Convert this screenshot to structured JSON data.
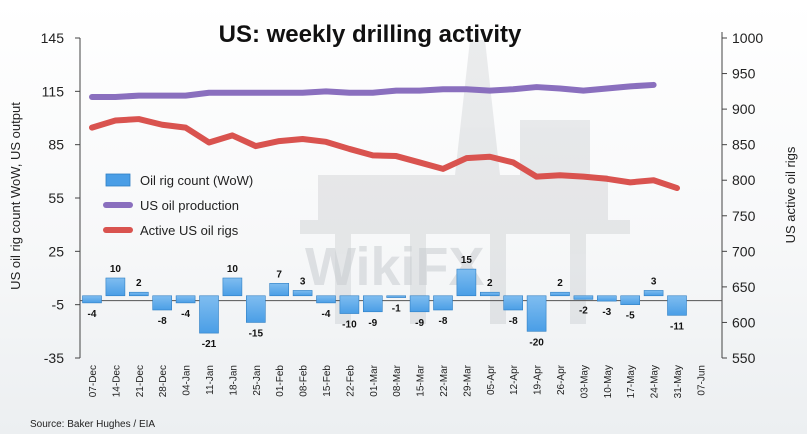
{
  "chart_data": {
    "type": "bar+line",
    "title": "US: weekly drilling activity",
    "ylabel_left": "US oil rig count WoW, US output",
    "ylabel_right": "US active oil rigs",
    "ylim_left": [
      -35,
      145
    ],
    "yticks_left": [
      -35,
      -5,
      25,
      55,
      85,
      115,
      145
    ],
    "ylim_right": [
      550,
      1000
    ],
    "yticks_right": [
      550,
      600,
      650,
      700,
      750,
      800,
      850,
      900,
      950,
      1000
    ],
    "categories": [
      "07-Dec",
      "14-Dec",
      "21-Dec",
      "28-Dec",
      "04-Jan",
      "11-Jan",
      "18-Jan",
      "25-Jan",
      "01-Feb",
      "08-Feb",
      "15-Feb",
      "22-Feb",
      "01-Mar",
      "08-Mar",
      "15-Mar",
      "22-Mar",
      "29-Mar",
      "05-Apr",
      "12-Apr",
      "19-Apr",
      "26-Apr",
      "03-May",
      "10-May",
      "17-May",
      "24-May",
      "31-May",
      "07-Jun"
    ],
    "series": [
      {
        "name": "Oil rig count (WoW)",
        "type": "bar",
        "axis": "left",
        "color": "#4a9ee6",
        "values": [
          -4,
          10,
          2,
          -8,
          -4,
          -21,
          10,
          -15,
          7,
          3,
          -4,
          -10,
          -9,
          -1,
          -9,
          -8,
          15,
          2,
          -8,
          -20,
          2,
          -2,
          -3,
          -5,
          3,
          -11,
          null
        ],
        "labels": [
          "-4",
          "10",
          "2",
          "-8",
          "-4",
          "-21",
          "10",
          "-15",
          "7",
          "3",
          "-4",
          "-10",
          "-9",
          "-1",
          "-9",
          "-8",
          "15",
          "2",
          "-8",
          "-20",
          "2",
          "-2",
          "-3",
          "-5",
          "3",
          "-11",
          ""
        ]
      },
      {
        "name": "US oil production",
        "type": "line",
        "axis": "right",
        "color": "#8a6fbe",
        "values": [
          917,
          917,
          919,
          919,
          919,
          923,
          923,
          923,
          923,
          923,
          925,
          923,
          923,
          926,
          926,
          928,
          928,
          926,
          928,
          931,
          929,
          926,
          929,
          932,
          934,
          null,
          null
        ]
      },
      {
        "name": "Active US oil rigs",
        "type": "line",
        "axis": "right",
        "color": "#d9534f",
        "values": [
          874,
          884,
          886,
          878,
          874,
          853,
          863,
          848,
          855,
          858,
          854,
          844,
          835,
          834,
          825,
          816,
          831,
          833,
          825,
          805,
          807,
          805,
          802,
          797,
          800,
          789,
          null
        ]
      }
    ],
    "legend": [
      "Oil rig count (WoW)",
      "US oil production",
      "Active US oil rigs"
    ],
    "source": "Source: Baker Hughes / EIA"
  },
  "watermark": "WikiFX"
}
